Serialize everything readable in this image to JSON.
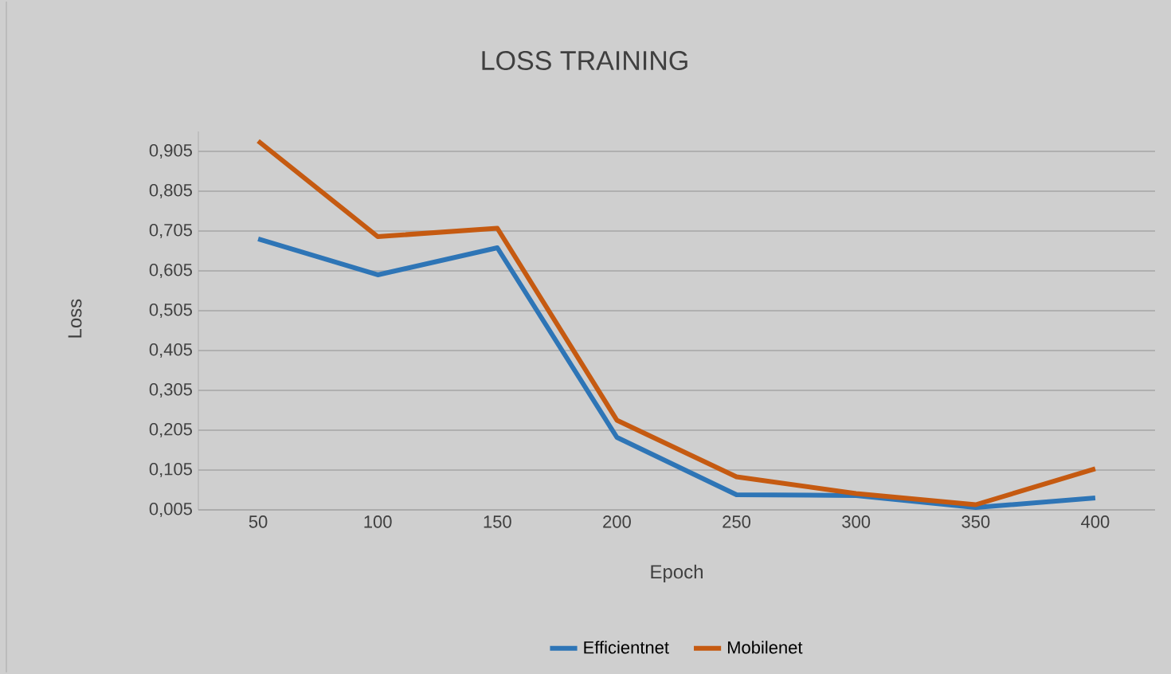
{
  "chart_data": {
    "type": "line",
    "title": "LOSS TRAINING",
    "xlabel": "Epoch",
    "ylabel": "Loss",
    "categories": [
      "50",
      "100",
      "150",
      "200",
      "250",
      "300",
      "350",
      "400"
    ],
    "series": [
      {
        "name": "Efficientnet",
        "color": "#2e75b6",
        "values": [
          0.685,
          0.595,
          0.663,
          0.187,
          0.043,
          0.041,
          0.011,
          0.035
        ]
      },
      {
        "name": "Mobilenet",
        "color": "#c55a11",
        "values": [
          0.931,
          0.691,
          0.712,
          0.23,
          0.088,
          0.046,
          0.018,
          0.108
        ]
      }
    ],
    "ylim": [
      0.005,
      0.955
    ],
    "yticks": [
      {
        "value": 0.005,
        "label": "0,005"
      },
      {
        "value": 0.105,
        "label": "0,105"
      },
      {
        "value": 0.205,
        "label": "0,205"
      },
      {
        "value": 0.305,
        "label": "0,305"
      },
      {
        "value": 0.405,
        "label": "0,405"
      },
      {
        "value": 0.505,
        "label": "0,505"
      },
      {
        "value": 0.605,
        "label": "0,605"
      },
      {
        "value": 0.705,
        "label": "0,705"
      },
      {
        "value": 0.805,
        "label": "0,805"
      },
      {
        "value": 0.905,
        "label": "0,905"
      }
    ],
    "grid": "y",
    "legend": "bottom",
    "marker": "none",
    "line_style": "solid"
  }
}
